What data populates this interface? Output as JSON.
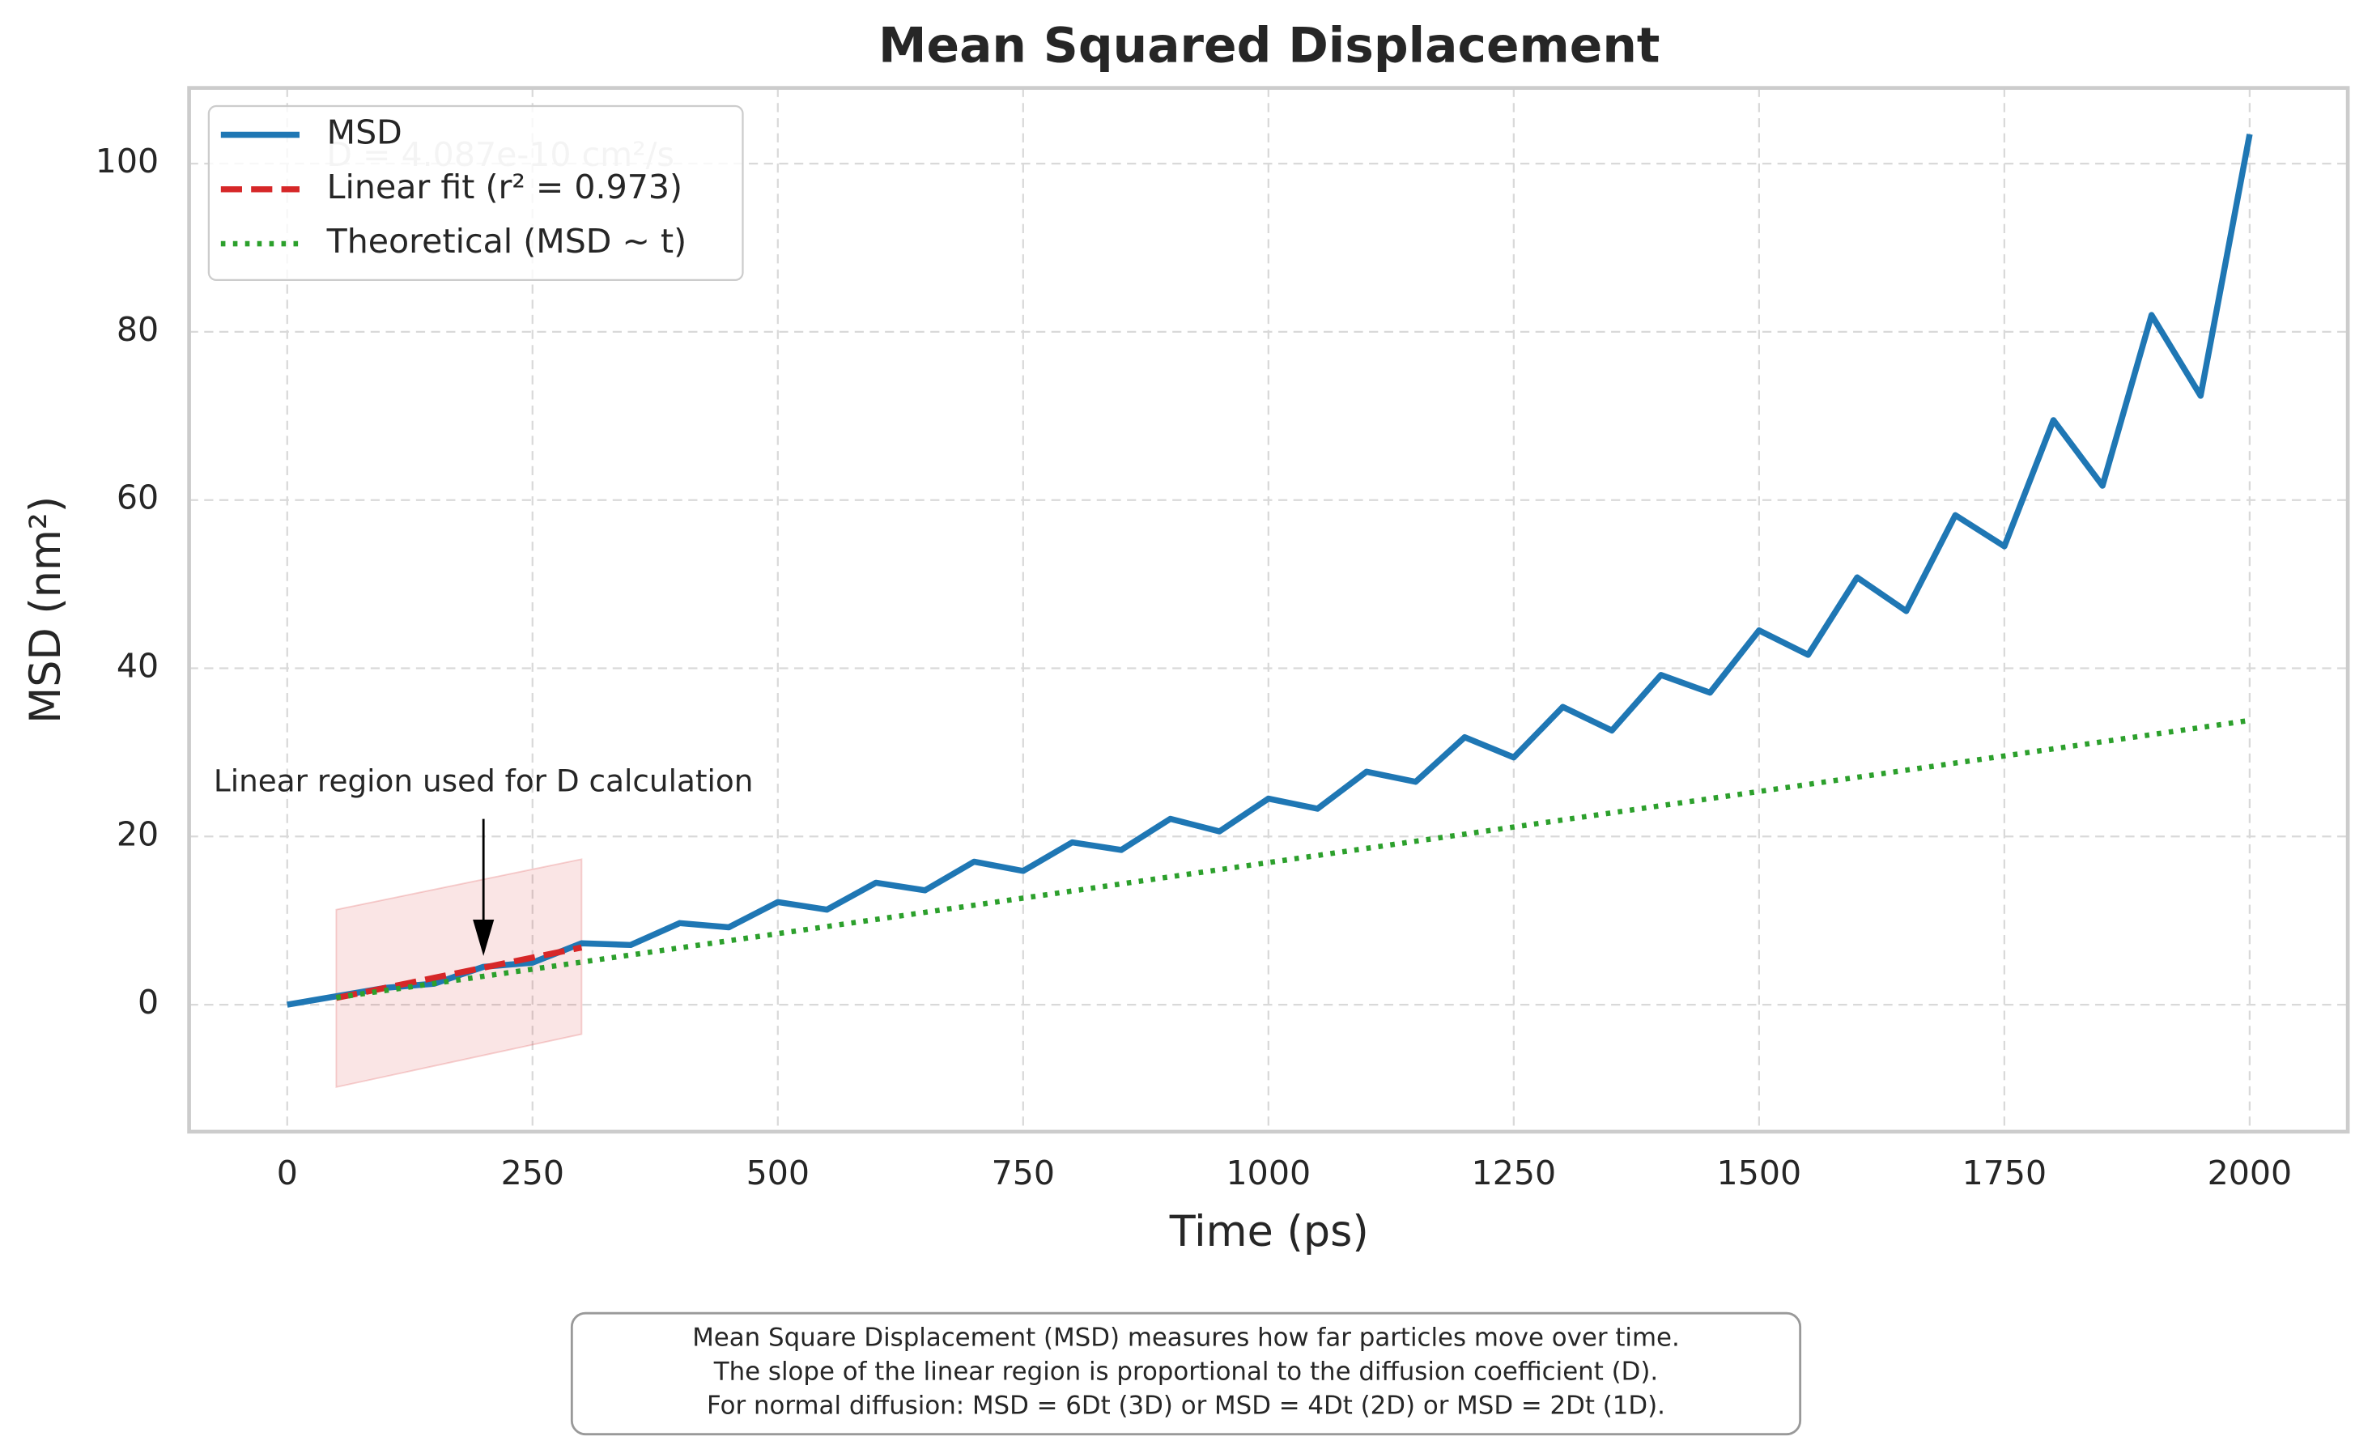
{
  "chart_data": {
    "type": "line",
    "title": "Mean Squared Displacement",
    "x_label": "Time (ps)",
    "y_label": "MSD (nm²)",
    "xlim": [
      -100,
      2100
    ],
    "ylim": [
      -15.1,
      109
    ],
    "xticks": [
      0,
      250,
      500,
      750,
      1000,
      1250,
      1500,
      1750,
      2000
    ],
    "yticks": [
      0,
      20,
      40,
      60,
      80,
      100
    ],
    "grid": true,
    "legend": "upper left",
    "x": [
      0,
      50,
      100,
      150,
      200,
      250,
      300,
      350,
      400,
      450,
      500,
      550,
      600,
      650,
      700,
      750,
      800,
      850,
      900,
      950,
      1000,
      1050,
      1100,
      1150,
      1200,
      1250,
      1300,
      1350,
      1400,
      1450,
      1500,
      1550,
      1600,
      1650,
      1700,
      1750,
      1800,
      1850,
      1900,
      1950,
      2000
    ],
    "series": [
      {
        "name": "MSD",
        "color": "#1f77b4",
        "style": "solid",
        "values": [
          0,
          1,
          2,
          2.5,
          4.5,
          5,
          7.3,
          7.1,
          9.7,
          9.2,
          12.2,
          11.3,
          14.5,
          13.6,
          17,
          15.9,
          19.3,
          18.4,
          22.1,
          20.6,
          24.5,
          23.3,
          27.7,
          26.5,
          31.8,
          29.4,
          35.4,
          32.6,
          39.2,
          37.1,
          44.5,
          41.6,
          50.8,
          46.8,
          58.2,
          54.5,
          69.5,
          61.7,
          82,
          72.4,
          103.5
        ]
      },
      {
        "name": "Linear fit (r² = 0.973)",
        "color": "#d62728",
        "style": "dashed",
        "x": [
          50,
          100,
          150,
          200,
          250,
          300
        ],
        "values": [
          0.8,
          2.0,
          3.2,
          4.4,
          5.6,
          6.8
        ]
      },
      {
        "name": "Theoretical (MSD ~ t)",
        "color": "#2ca02c",
        "style": "dotted",
        "x": [
          50,
          2000
        ],
        "values": [
          0.84,
          33.8
        ]
      }
    ],
    "band": {
      "x": [
        50,
        300
      ],
      "lower": [
        -9.8,
        -3.5
      ],
      "upper": [
        11.3,
        17.3
      ],
      "color": "#d62728"
    },
    "annotations": [
      {
        "text": "Linear region used for D calculation",
        "xy": [
          200,
          5.8
        ],
        "xytext": [
          200,
          26.4
        ]
      },
      {
        "text": "D = 4.087e-10 cm²/s",
        "xytext": [
          40,
          100.8
        ]
      }
    ],
    "note": [
      "Mean Square Displacement (MSD) measures how far particles move over time.",
      "The slope of the linear region is proportional to the diffusion coefficient (D).",
      "For normal diffusion: MSD = 6Dt (3D) or MSD = 4Dt (2D) or MSD = 2Dt (1D)."
    ]
  }
}
